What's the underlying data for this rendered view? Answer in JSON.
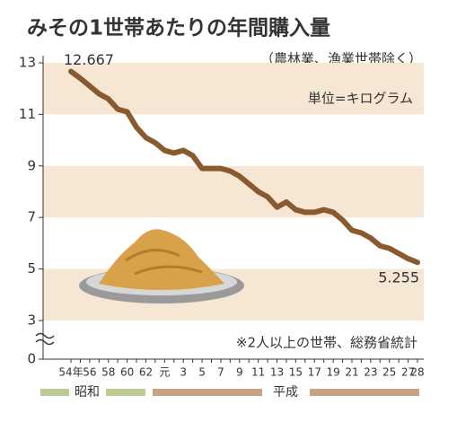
{
  "chart_data": {
    "type": "line",
    "title": "みその1世帯あたりの年間購入量",
    "annotations": [
      "（農林業、漁業世帯除く）",
      "単位=キログラム",
      "※2人以上の世帯、総務省統計"
    ],
    "eras": [
      "昭和",
      "平成"
    ],
    "categories": [
      "54年",
      null,
      "56",
      null,
      "58",
      null,
      "60",
      null,
      "62",
      null,
      "元",
      null,
      "3",
      null,
      "5",
      null,
      "7",
      null,
      "9",
      null,
      "11",
      null,
      "13",
      null,
      "15",
      null,
      "17",
      null,
      "19",
      null,
      "21",
      null,
      "23",
      null,
      "25",
      null,
      "27",
      "28"
    ],
    "values": [
      12.667,
      12.4,
      12.1,
      11.8,
      11.6,
      11.2,
      11.1,
      10.5,
      10.1,
      9.9,
      9.6,
      9.5,
      9.6,
      9.4,
      8.9,
      8.9,
      8.9,
      8.8,
      8.6,
      8.3,
      8.0,
      7.8,
      7.4,
      7.6,
      7.3,
      7.2,
      7.2,
      7.3,
      7.2,
      6.9,
      6.5,
      6.4,
      6.2,
      5.9,
      5.8,
      5.6,
      5.4,
      5.255
    ],
    "color": "#8a5a2e",
    "ylim": [
      1.5,
      13
    ],
    "yticks": [
      0,
      3,
      5,
      7,
      9,
      11,
      13
    ],
    "axis_break": true,
    "bands": true
  }
}
